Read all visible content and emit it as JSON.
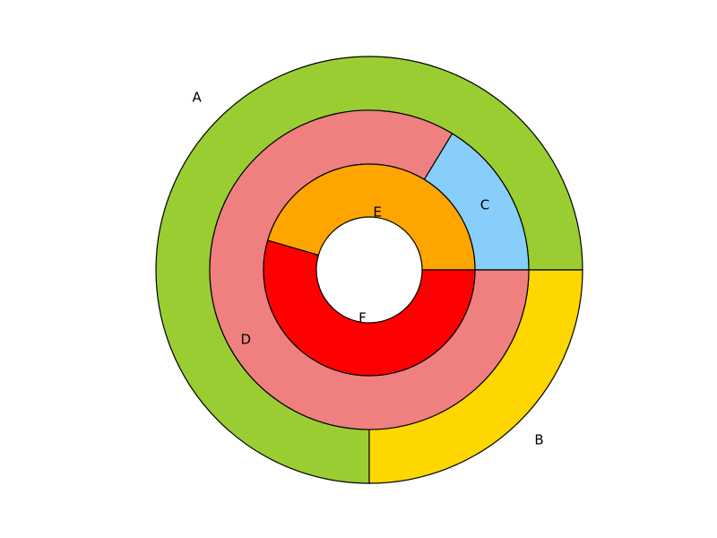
{
  "chart_data": {
    "type": "pie",
    "title": "",
    "rings": [
      {
        "name": "",
        "level": "outer",
        "segments": [
          {
            "label": "A",
            "value": 75,
            "color": "#9ACD32"
          },
          {
            "label": "B",
            "value": 25,
            "color": "#FFD700"
          }
        ]
      },
      {
        "name": "",
        "level": "middle",
        "segments": [
          {
            "label": "C",
            "value": 16.3,
            "color": "#87CEFA"
          },
          {
            "label": "D",
            "value": 83.7,
            "color": "#F08080"
          }
        ]
      },
      {
        "name": "",
        "level": "inner",
        "segments": [
          {
            "label": "E",
            "value": 45.5,
            "color": "#FFA500"
          },
          {
            "label": "F",
            "value": 54.5,
            "color": "#FF0000"
          }
        ]
      }
    ],
    "start_angle_deg": 0,
    "direction": "counterclockwise",
    "legend": "none",
    "grid": false
  }
}
